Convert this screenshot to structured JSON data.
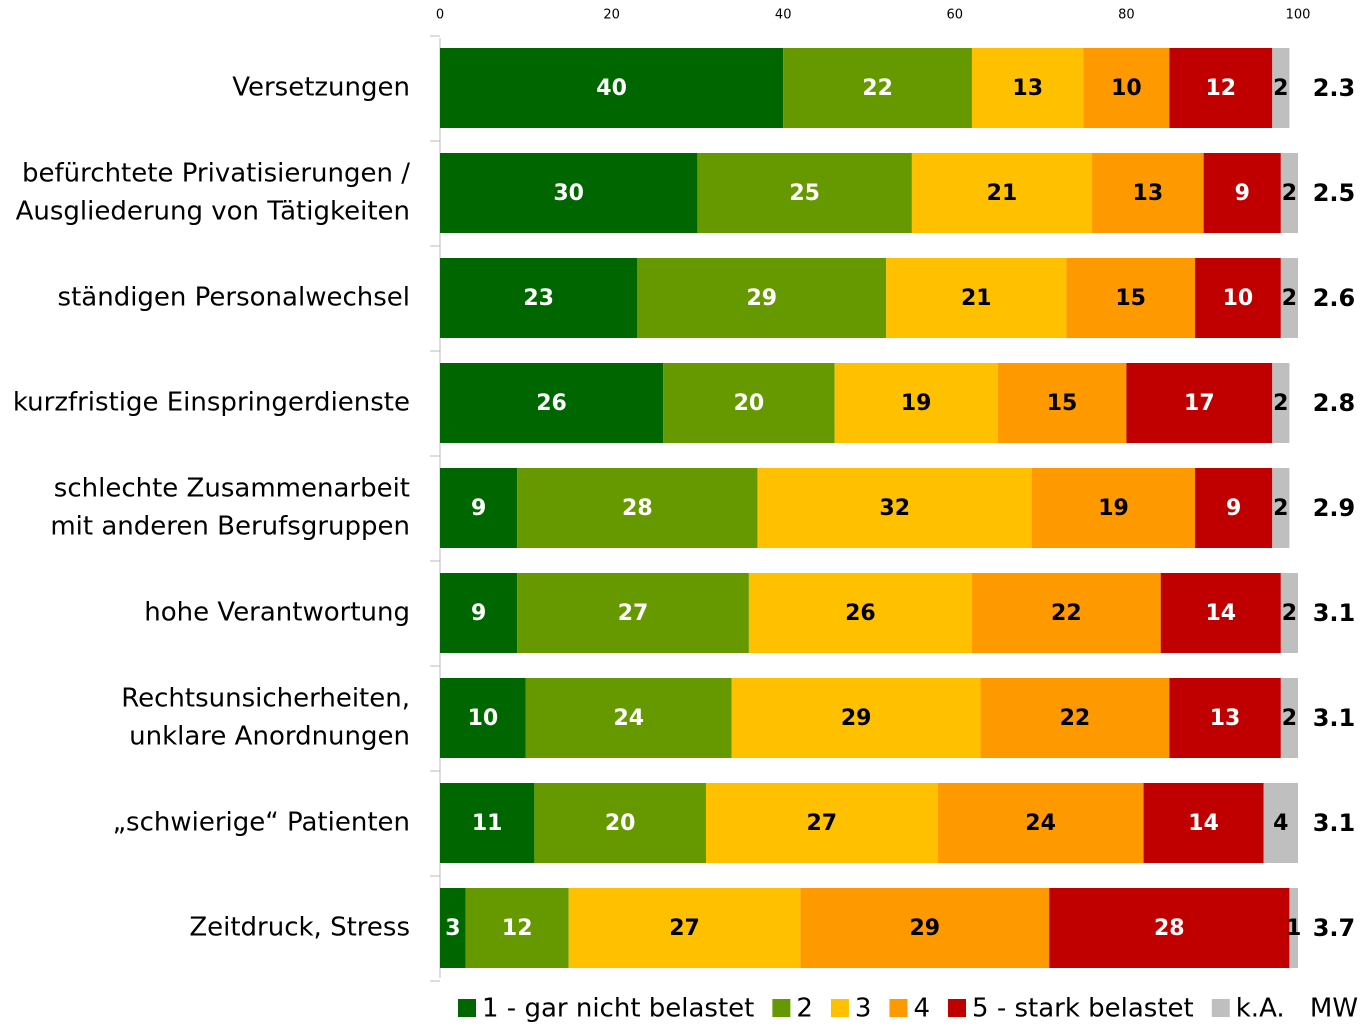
{
  "chart_data": {
    "type": "stacked_bar_horizontal",
    "categories": [
      [
        "Versetzungen"
      ],
      [
        "befürchtete Privatisierungen /",
        "Ausgliederung von Tätigkeiten"
      ],
      [
        "ständigen Personalwechsel"
      ],
      [
        "kurzfristige Einspringerdienste"
      ],
      [
        "schlechte Zusammenarbeit",
        "mit anderen Berufsgruppen"
      ],
      [
        "hohe Verantwortung"
      ],
      [
        "Rechtsunsicherheiten,",
        "unklare Anordnungen"
      ],
      [
        "„schwierige“ Patienten"
      ],
      [
        "Zeitdruck, Stress"
      ]
    ],
    "series": [
      {
        "name": "1 - gar nicht belastet",
        "color": "#006600",
        "label_color": "#ffffff",
        "values": [
          40,
          30,
          23,
          26,
          9,
          9,
          10,
          11,
          3
        ]
      },
      {
        "name": "2",
        "color": "#669900",
        "label_color": "#ffffff",
        "values": [
          22,
          25,
          29,
          20,
          28,
          27,
          24,
          20,
          12
        ]
      },
      {
        "name": "3",
        "color": "#ffc000",
        "label_color": "#000000",
        "values": [
          13,
          21,
          21,
          19,
          32,
          26,
          29,
          27,
          27
        ]
      },
      {
        "name": "4",
        "color": "#ff9900",
        "label_color": "#000000",
        "values": [
          10,
          13,
          15,
          15,
          19,
          22,
          22,
          24,
          29
        ]
      },
      {
        "name": "5 - stark belastet",
        "color": "#c00000",
        "label_color": "#ffffff",
        "values": [
          12,
          9,
          10,
          17,
          9,
          14,
          13,
          14,
          28
        ]
      },
      {
        "name": "k.A.",
        "color": "#bfbfbf",
        "label_color": "#000000",
        "values": [
          2,
          2,
          2,
          2,
          2,
          2,
          2,
          4,
          1
        ]
      }
    ],
    "mw": {
      "label": "MW",
      "values": [
        2.3,
        2.5,
        2.6,
        2.8,
        2.9,
        3.1,
        3.1,
        3.1,
        3.7
      ]
    },
    "xlim": [
      0,
      100
    ],
    "xticks": [
      0,
      20,
      40,
      60,
      80,
      100
    ],
    "grid": false
  }
}
